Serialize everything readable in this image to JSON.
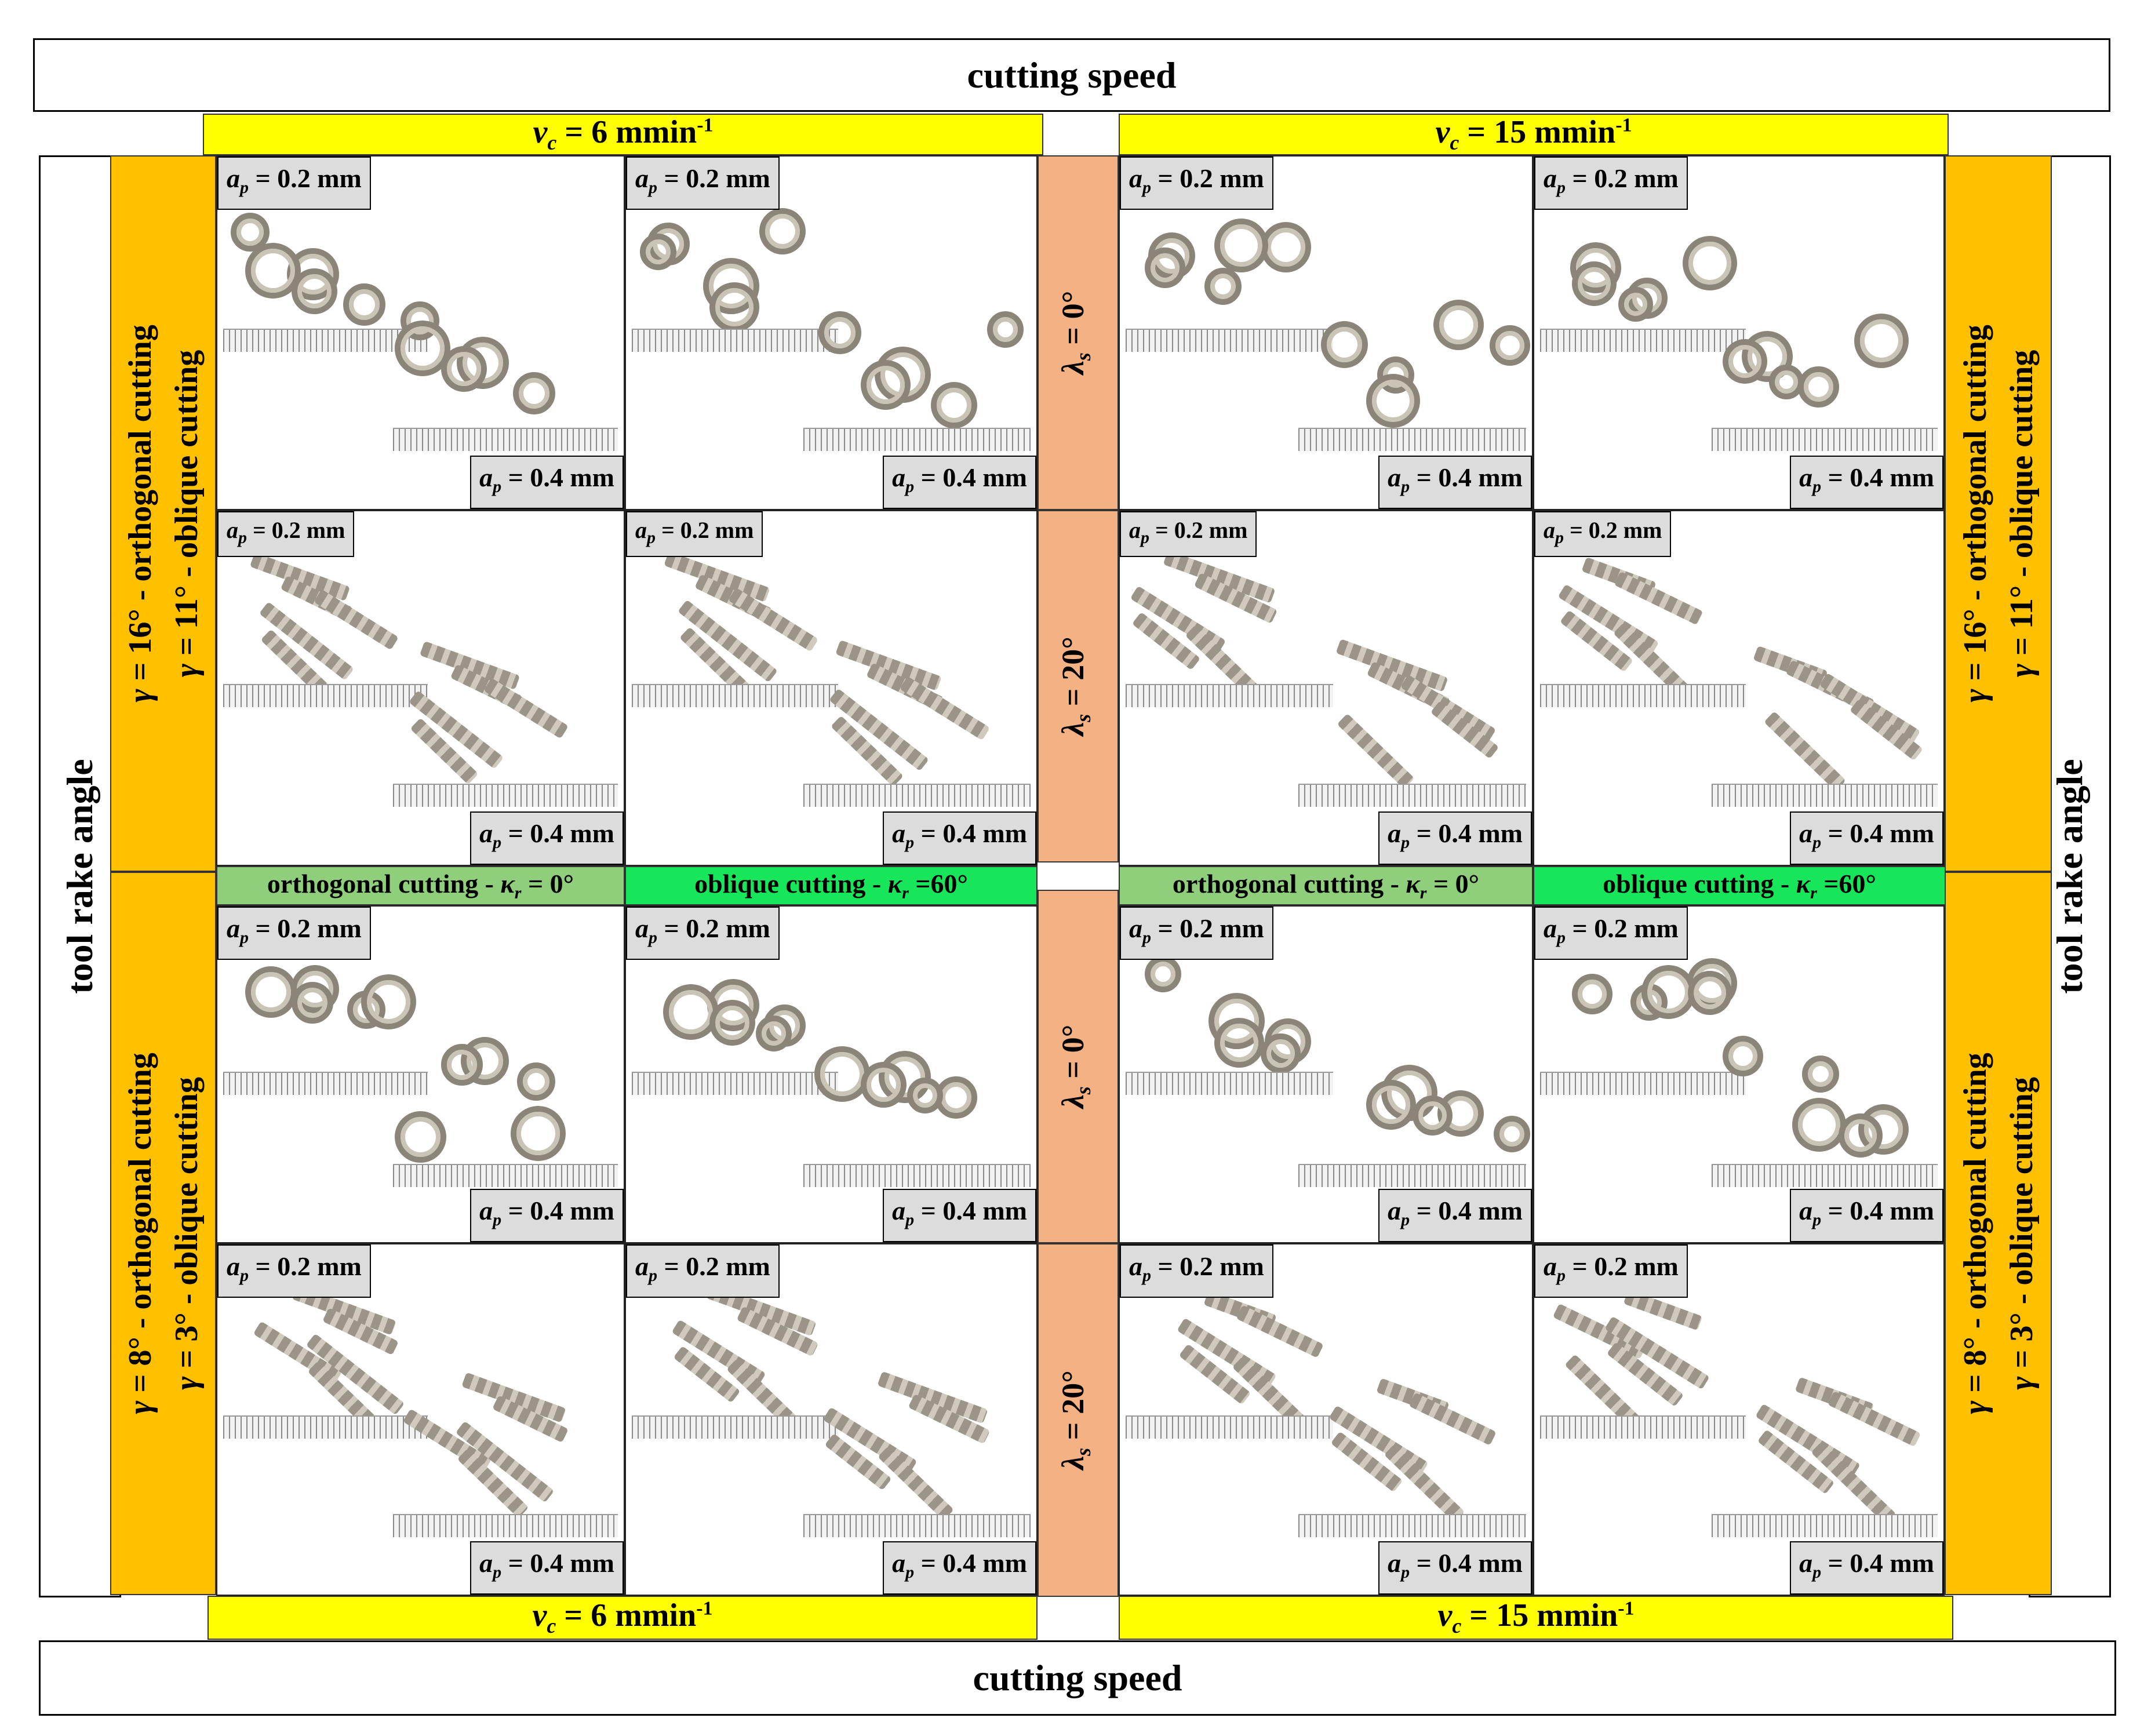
{
  "header": {
    "title": "cutting speed"
  },
  "footer": {
    "title": "cutting speed"
  },
  "side_left": {
    "title": "tool rake angle"
  },
  "side_right": {
    "title": "tool rake angle"
  },
  "speeds": {
    "left": "6 mmin",
    "right": "15 mmin",
    "exp": "-1"
  },
  "rake_top": {
    "line1": "= 16° - orthogonal cutting",
    "line2": "= 11° - oblique cutting"
  },
  "rake_bottom": {
    "line1": "= 8° - orthogonal cutting",
    "line2": "= 3° - oblique cutting"
  },
  "inclination": {
    "zero": "= 0°",
    "twenty": "= 20°"
  },
  "cutting_bands": {
    "orthogonal": "orthogonal cutting -",
    "orthogonal_val": "= 0°",
    "oblique": "oblique cutting -",
    "oblique_val": "=60°"
  },
  "depths": {
    "small": "= 0.2 mm",
    "large": "= 0.4 mm"
  }
}
